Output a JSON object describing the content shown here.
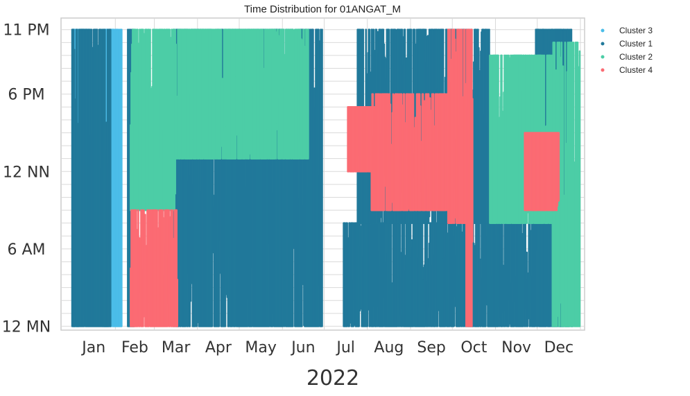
{
  "chart_data": {
    "type": "scatter",
    "title": "Time Distribution for 01ANGAT_M",
    "xlabel": "2022",
    "ylabel": "",
    "x_ticks": [
      "Jan",
      "Feb",
      "Mar",
      "Apr",
      "May",
      "Jun",
      "Jul",
      "Aug",
      "Sep",
      "Oct",
      "Nov",
      "Dec"
    ],
    "y_ticks": [
      "12 MN",
      "6 AM",
      "12 NN",
      "6 PM",
      "11 PM"
    ],
    "y_tick_hours": [
      0,
      6,
      12,
      18,
      23
    ],
    "ylim_hours": [
      -0.3,
      23.9
    ],
    "xlim_days": [
      -8,
      368
    ],
    "grid": true,
    "legend_position": "top-right",
    "series": [
      {
        "name": "Cluster 3",
        "color": "#4bbde8",
        "bands": [
          {
            "from": 1,
            "to": 5,
            "low": 0,
            "high": 23
          },
          {
            "from": 5,
            "to": 12,
            "low": 17,
            "high": 23
          },
          {
            "from": 12,
            "to": 22,
            "low": 10,
            "high": 20
          },
          {
            "from": 22,
            "to": 36,
            "low": 0,
            "high": 23
          }
        ]
      },
      {
        "name": "Cluster 1",
        "color": "#21799a",
        "bands": [
          {
            "from": 0,
            "to": 22,
            "low": 0,
            "high": 23
          },
          {
            "from": 22,
            "to": 28,
            "low": 0,
            "high": 23
          },
          {
            "from": 40,
            "to": 45,
            "low": 0,
            "high": 23
          },
          {
            "from": 73,
            "to": 180,
            "low": 0,
            "high": 23
          },
          {
            "from": 195,
            "to": 314,
            "low": 0,
            "high": 8
          },
          {
            "from": 205,
            "to": 300,
            "low": 8,
            "high": 23
          },
          {
            "from": 314,
            "to": 333,
            "low": 0,
            "high": 8
          },
          {
            "from": 333,
            "to": 360,
            "low": 0,
            "high": 23
          }
        ]
      },
      {
        "name": "Cluster 2",
        "color": "#4ccda6",
        "bands": [
          {
            "from": 42,
            "to": 75,
            "low": 9,
            "high": 23
          },
          {
            "from": 75,
            "to": 170,
            "low": 13,
            "high": 23
          },
          {
            "from": 300,
            "to": 345,
            "low": 8,
            "high": 21
          },
          {
            "from": 345,
            "to": 365,
            "low": 0,
            "high": 22
          }
        ]
      },
      {
        "name": "Cluster 4",
        "color": "#fb6b73",
        "bands": [
          {
            "from": 42,
            "to": 76,
            "low": 0,
            "high": 9
          },
          {
            "from": 198,
            "to": 225,
            "low": 12,
            "high": 17
          },
          {
            "from": 215,
            "to": 275,
            "low": 9,
            "high": 18
          },
          {
            "from": 270,
            "to": 285,
            "low": 8,
            "high": 23
          },
          {
            "from": 283,
            "to": 288,
            "low": 0,
            "high": 23
          },
          {
            "from": 325,
            "to": 350,
            "low": 9,
            "high": 15
          }
        ]
      }
    ]
  }
}
